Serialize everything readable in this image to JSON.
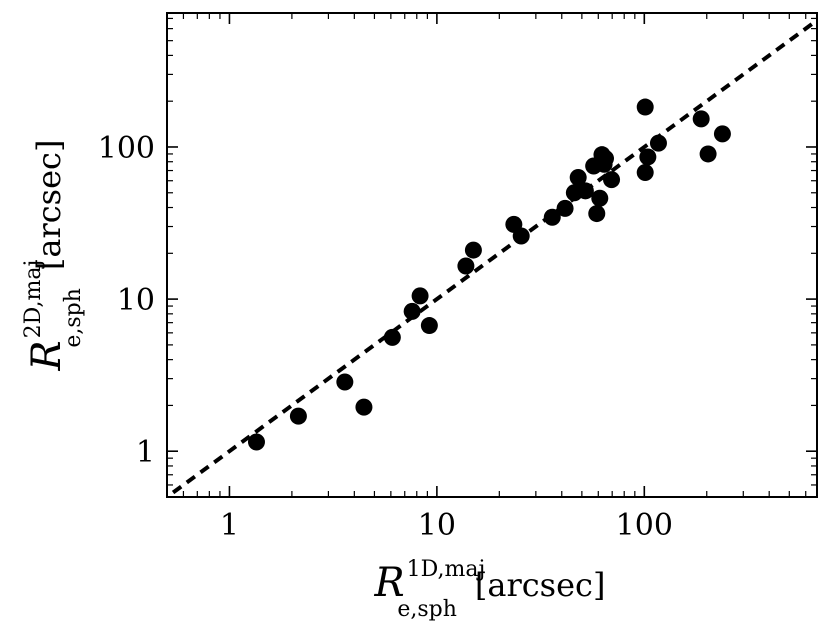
{
  "chart_data": {
    "type": "scatter",
    "scale": {
      "x": "log",
      "y": "log"
    },
    "xlim": [
      0.5,
      680
    ],
    "ylim": [
      0.5,
      760
    ],
    "x_ticks": [
      1,
      10,
      100
    ],
    "x_tick_labels": [
      "1",
      "10",
      "100"
    ],
    "y_ticks": [
      1,
      10,
      100
    ],
    "y_tick_labels": [
      "1",
      "10",
      "100"
    ],
    "xlabel": {
      "symbol": "R",
      "superscript": "1D,maj",
      "subscript": "e,sph",
      "units": "[arcsec]"
    },
    "ylabel": {
      "symbol": "R",
      "superscript": "2D,maj",
      "subscript": "e,sph",
      "units": "[arcsec]"
    },
    "grid": false,
    "reference_line": {
      "style": "dashed",
      "relation": "y = x"
    },
    "marker_color": "#000000",
    "points": [
      {
        "x": 1.35,
        "y": 1.15
      },
      {
        "x": 2.15,
        "y": 1.7
      },
      {
        "x": 3.6,
        "y": 2.85
      },
      {
        "x": 4.45,
        "y": 1.95
      },
      {
        "x": 6.1,
        "y": 5.6
      },
      {
        "x": 7.6,
        "y": 8.3
      },
      {
        "x": 8.3,
        "y": 10.5
      },
      {
        "x": 9.2,
        "y": 6.7
      },
      {
        "x": 13.8,
        "y": 16.5
      },
      {
        "x": 15.0,
        "y": 21.0
      },
      {
        "x": 23.5,
        "y": 31.0
      },
      {
        "x": 25.5,
        "y": 26.0
      },
      {
        "x": 36.0,
        "y": 34.5
      },
      {
        "x": 41.5,
        "y": 39.5
      },
      {
        "x": 46.0,
        "y": 50.0
      },
      {
        "x": 48.0,
        "y": 63.0
      },
      {
        "x": 52.0,
        "y": 51.5
      },
      {
        "x": 57.0,
        "y": 75.0
      },
      {
        "x": 59.0,
        "y": 36.5
      },
      {
        "x": 61.0,
        "y": 46.0
      },
      {
        "x": 62.5,
        "y": 89.0
      },
      {
        "x": 65.0,
        "y": 84.0
      },
      {
        "x": 64.0,
        "y": 77.0
      },
      {
        "x": 69.5,
        "y": 61.0
      },
      {
        "x": 101.0,
        "y": 183.0
      },
      {
        "x": 101.0,
        "y": 68.0
      },
      {
        "x": 104.0,
        "y": 86.0
      },
      {
        "x": 117.0,
        "y": 106.0
      },
      {
        "x": 188.0,
        "y": 153.0
      },
      {
        "x": 203.0,
        "y": 90.0
      },
      {
        "x": 238.0,
        "y": 122.0
      }
    ]
  }
}
